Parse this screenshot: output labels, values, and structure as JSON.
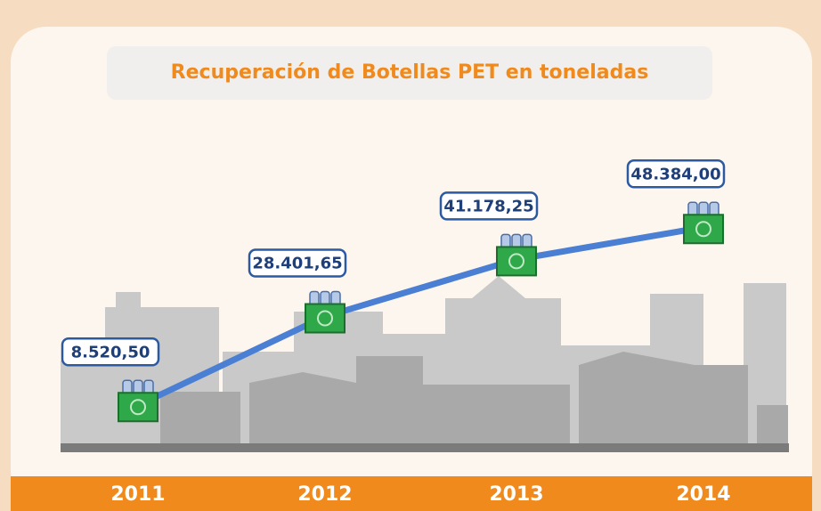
{
  "chart_data": {
    "type": "line",
    "title": "Recuperación de Botellas PET en toneladas",
    "categories": [
      "2011",
      "2012",
      "2013",
      "2014"
    ],
    "values": [
      8520.5,
      28401.65,
      41178.25,
      48384.0
    ],
    "value_labels": [
      "8.520,50",
      "28.401,65",
      "41.178,25",
      "48.384,00"
    ],
    "color": "#4a7fd4"
  }
}
